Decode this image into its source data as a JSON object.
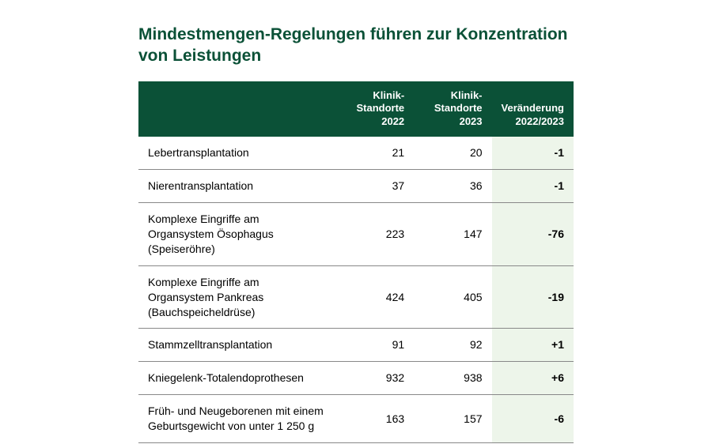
{
  "title": "Mindestmengen-Regelungen führen zur Konzentration von Leistungen",
  "styling": {
    "header_bg": "#0b5137",
    "header_text": "#ffffff",
    "title_color": "#0b5137",
    "row_border": "#888888",
    "change_bg": "#edf5ea",
    "page_bg": "#ffffff",
    "title_fontsize": 21,
    "header_fontsize": 13,
    "cell_fontsize": 14
  },
  "table": {
    "type": "table",
    "columns": [
      {
        "label": "",
        "align": "left",
        "width": "46%"
      },
      {
        "label": "Klinik-Standorte 2022",
        "align": "right",
        "width": "18%"
      },
      {
        "label": "Klinik-Standorte 2023",
        "align": "right",
        "width": "18%"
      },
      {
        "label": "Veränderung 2022/2023",
        "align": "right",
        "width": "18%"
      }
    ],
    "rows": [
      {
        "label": "Lebertransplantation",
        "v2022": "21",
        "v2023": "20",
        "change": "-1"
      },
      {
        "label": "Nierentransplantation",
        "v2022": "37",
        "v2023": "36",
        "change": "-1"
      },
      {
        "label": "Komplexe Eingriffe am Organsystem Ösophagus (Speiseröhre)",
        "v2022": "223",
        "v2023": "147",
        "change": "-76"
      },
      {
        "label": "Komplexe Eingriffe am Organsystem Pankreas (Bauchspeicheldrüse)",
        "v2022": "424",
        "v2023": "405",
        "change": "-19"
      },
      {
        "label": "Stammzelltransplantation",
        "v2022": "91",
        "v2023": "92",
        "change": "+1"
      },
      {
        "label": "Kniegelenk-Totalendoprothesen",
        "v2022": "932",
        "v2023": "938",
        "change": "+6"
      },
      {
        "label": "Früh- und Neugeborenen mit einem Geburtsgewicht von unter 1 250 g",
        "v2022": "163",
        "v2023": "157",
        "change": "-6"
      }
    ]
  }
}
